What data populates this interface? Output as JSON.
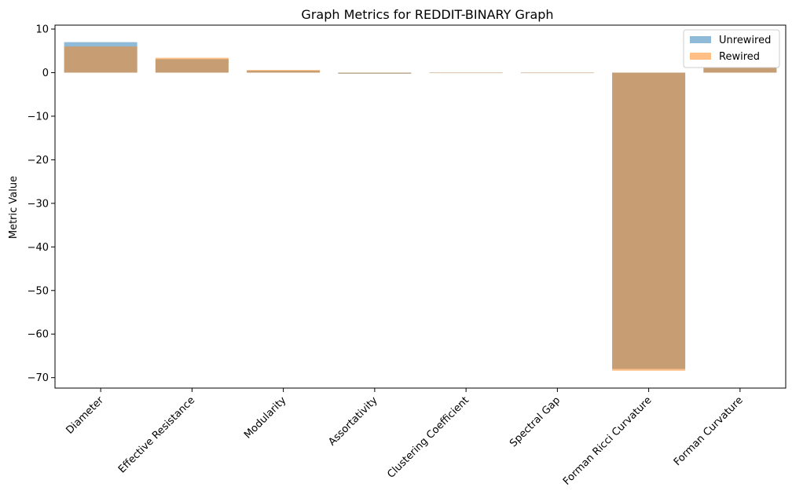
{
  "chart_data": {
    "type": "bar",
    "title": "Graph Metrics for REDDIT-BINARY Graph",
    "xlabel": "",
    "ylabel": "Metric Value",
    "categories": [
      "Diameter",
      "Effective Resistance",
      "Modularity",
      "Assortativity",
      "Clustering Coefficient",
      "Spectral Gap",
      "Forman Ricci Curvature",
      "Forman Curvature"
    ],
    "series": [
      {
        "name": "Unrewired",
        "color": "#1f77b4",
        "values": [
          7.0,
          3.1,
          0.45,
          -0.25,
          0.0,
          0.0,
          -68.0,
          1.2
        ]
      },
      {
        "name": "Rewired",
        "color": "#ff7f0e",
        "values": [
          6.0,
          3.4,
          0.6,
          -0.2,
          0.0,
          0.0,
          -68.4,
          1.2
        ]
      }
    ],
    "ylim": [
      -72.4,
      10.9
    ],
    "yticks": [
      10,
      0,
      -10,
      -20,
      -30,
      -40,
      -50,
      -60,
      -70
    ],
    "ytick_labels": [
      "10",
      "0",
      "−10",
      "−20",
      "−30",
      "−40",
      "−50",
      "−60",
      "−70"
    ],
    "bar_alpha": 0.5,
    "legend_position": "top-right",
    "grid": false
  }
}
